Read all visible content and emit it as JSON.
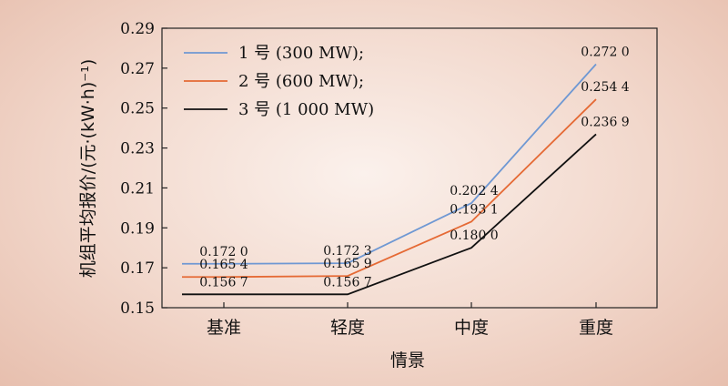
{
  "chart_data": {
    "type": "line",
    "categories": [
      "基准",
      "轻度",
      "中度",
      "重度"
    ],
    "xlabel": "情景",
    "ylabel": "机组平均报价/(元·(kW·h)⁻¹)",
    "ylim": [
      0.15,
      0.29
    ],
    "yticks": [
      "0.15",
      "0.17",
      "0.19",
      "0.21",
      "0.23",
      "0.25",
      "0.27",
      "0.29"
    ],
    "grid": false,
    "legend_position": "top-left",
    "series": [
      {
        "name": "1 号 (300 MW);",
        "color": "#6f98d3",
        "values": [
          0.172,
          0.1723,
          0.2024,
          0.272
        ],
        "labels": [
          "0.172 0",
          "0.172 3",
          "0.202 4",
          "0.272 0"
        ]
      },
      {
        "name": "2 号 (600 MW);",
        "color": "#e56a35",
        "values": [
          0.1654,
          0.1659,
          0.1931,
          0.2544
        ],
        "labels": [
          "0.165 4",
          "0.165 9",
          "0.193 1",
          "0.254 4"
        ]
      },
      {
        "name": "3 号 (1 000 MW)",
        "color": "#111111",
        "values": [
          0.1567,
          0.1567,
          0.18,
          0.2369
        ],
        "labels": [
          "0.156 7",
          "0.156 7",
          "0.180 0",
          "0.236 9"
        ]
      }
    ]
  }
}
